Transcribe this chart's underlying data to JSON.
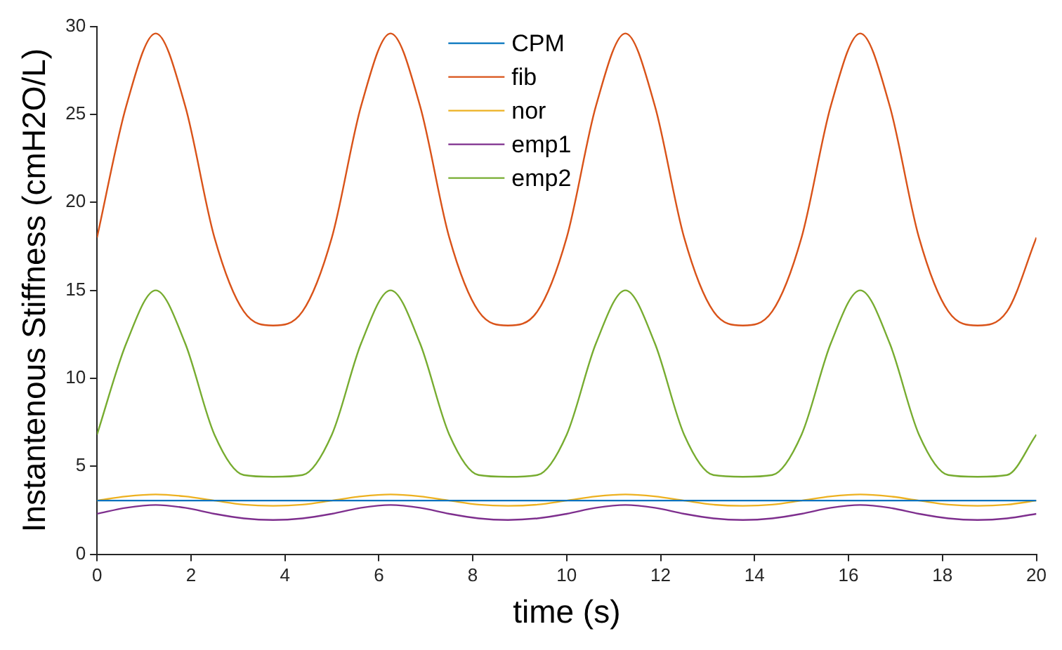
{
  "chart_data": {
    "type": "line",
    "xlabel": "time (s)",
    "ylabel": "Instantenous Stiffness (cmH2O/L)",
    "x": [
      0,
      0.625,
      1.25,
      1.875,
      2.5,
      3.125,
      3.75,
      4.375,
      5,
      5.625,
      6.25,
      6.875,
      7.5,
      8.125,
      8.75,
      9.375,
      10,
      10.625,
      11.25,
      11.875,
      12.5,
      13.125,
      13.75,
      14.375,
      15,
      15.625,
      16.25,
      16.875,
      17.5,
      18.125,
      18.75,
      19.375,
      20
    ],
    "series": [
      {
        "name": "CPM",
        "color": "#0072bd",
        "values": [
          3.05,
          3.05,
          3.05,
          3.05,
          3.05,
          3.05,
          3.05,
          3.05,
          3.05,
          3.05,
          3.05,
          3.05,
          3.05,
          3.05,
          3.05,
          3.05,
          3.05,
          3.05,
          3.05,
          3.05,
          3.05,
          3.05,
          3.05,
          3.05,
          3.05,
          3.05,
          3.05,
          3.05,
          3.05,
          3.05,
          3.05,
          3.05,
          3.05
        ]
      },
      {
        "name": "fib",
        "color": "#d95319",
        "values": [
          18,
          25.5,
          29.6,
          25.5,
          18,
          13.8,
          13,
          13.8,
          18,
          25.5,
          29.6,
          25.5,
          18,
          13.8,
          13,
          13.8,
          18,
          25.5,
          29.6,
          25.5,
          18,
          13.8,
          13,
          13.8,
          18,
          25.5,
          29.6,
          25.5,
          18,
          13.8,
          13,
          13.8,
          18
        ]
      },
      {
        "name": "nor",
        "color": "#edb120",
        "values": [
          3.05,
          3.29,
          3.4,
          3.29,
          3.05,
          2.82,
          2.75,
          2.82,
          3.05,
          3.29,
          3.4,
          3.29,
          3.05,
          2.82,
          2.75,
          2.82,
          3.05,
          3.29,
          3.4,
          3.29,
          3.05,
          2.82,
          2.75,
          2.82,
          3.05,
          3.29,
          3.4,
          3.29,
          3.05,
          2.82,
          2.75,
          2.82,
          3.05
        ]
      },
      {
        "name": "emp1",
        "color": "#7e2f8e",
        "values": [
          2.3,
          2.64,
          2.8,
          2.64,
          2.3,
          2.04,
          1.95,
          2.04,
          2.3,
          2.64,
          2.8,
          2.64,
          2.3,
          2.04,
          1.95,
          2.04,
          2.3,
          2.64,
          2.8,
          2.64,
          2.3,
          2.04,
          1.95,
          2.04,
          2.3,
          2.64,
          2.8,
          2.64,
          2.3,
          2.04,
          1.95,
          2.04,
          2.3
        ]
      },
      {
        "name": "emp2",
        "color": "#77ac30",
        "values": [
          6.8,
          12,
          15,
          12,
          6.8,
          4.5,
          4.4,
          4.5,
          6.8,
          12,
          15,
          12,
          6.8,
          4.5,
          4.4,
          4.5,
          6.8,
          12,
          15,
          12,
          6.8,
          4.5,
          4.4,
          4.5,
          6.8,
          12,
          15,
          12,
          6.8,
          4.5,
          4.4,
          4.5,
          6.8
        ]
      }
    ],
    "xlim": [
      0,
      20
    ],
    "xticks": [
      0,
      2,
      4,
      6,
      8,
      10,
      12,
      14,
      16,
      18,
      20
    ],
    "ylim": [
      0,
      30
    ],
    "yticks": [
      0,
      5,
      10,
      15,
      20,
      25,
      30
    ],
    "legend": "top",
    "marker": "none",
    "line_style": "solid"
  }
}
